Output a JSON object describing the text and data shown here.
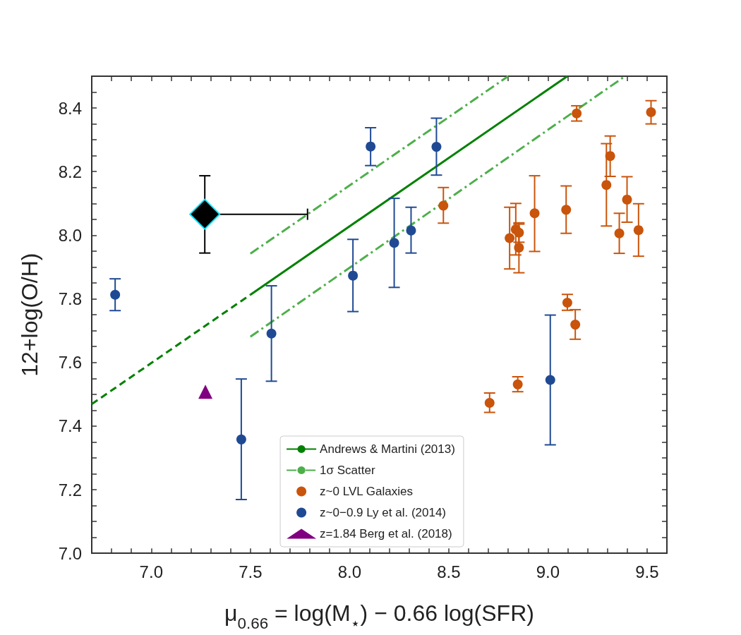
{
  "chart_data": {
    "type": "scatter",
    "xlabel": "μ$_{0.66}$ = log(M$_{⋆}$) − 0.66 log(SFR)",
    "ylabel": "12+log(O/H)",
    "xlim": [
      6.7,
      9.6
    ],
    "ylim": [
      7.0,
      8.5
    ],
    "xticks": [
      {
        "value": 6.8,
        "label": null
      },
      {
        "value": 6.9,
        "label": null
      },
      {
        "value": 7,
        "label": "7.0"
      },
      {
        "value": 7.1,
        "label": null
      },
      {
        "value": 7.2,
        "label": null
      },
      {
        "value": 7.3,
        "label": null
      },
      {
        "value": 7.4,
        "label": null
      },
      {
        "value": 7.5,
        "label": "7.5"
      },
      {
        "value": 7.6,
        "label": null
      },
      {
        "value": 7.7,
        "label": null
      },
      {
        "value": 7.8,
        "label": null
      },
      {
        "value": 7.9,
        "label": null
      },
      {
        "value": 8,
        "label": "8.0"
      },
      {
        "value": 8.1,
        "label": null
      },
      {
        "value": 8.2,
        "label": null
      },
      {
        "value": 8.3,
        "label": null
      },
      {
        "value": 8.4,
        "label": null
      },
      {
        "value": 8.5,
        "label": "8.5"
      },
      {
        "value": 8.6,
        "label": null
      },
      {
        "value": 8.7,
        "label": null
      },
      {
        "value": 8.8,
        "label": null
      },
      {
        "value": 8.9,
        "label": null
      },
      {
        "value": 9,
        "label": "9.0"
      },
      {
        "value": 9.1,
        "label": null
      },
      {
        "value": 9.2,
        "label": null
      },
      {
        "value": 9.3,
        "label": null
      },
      {
        "value": 9.4,
        "label": null
      },
      {
        "value": 9.5,
        "label": "9.5"
      }
    ],
    "yticks": [
      {
        "value": 7,
        "label": "7.0"
      },
      {
        "value": 7.05,
        "label": null
      },
      {
        "value": 7.1,
        "label": null
      },
      {
        "value": 7.15,
        "label": null
      },
      {
        "value": 7.2,
        "label": "7.2"
      },
      {
        "value": 7.25,
        "label": null
      },
      {
        "value": 7.3,
        "label": null
      },
      {
        "value": 7.35,
        "label": null
      },
      {
        "value": 7.4,
        "label": "7.4"
      },
      {
        "value": 7.45,
        "label": null
      },
      {
        "value": 7.5,
        "label": null
      },
      {
        "value": 7.55,
        "label": null
      },
      {
        "value": 7.6,
        "label": "7.6"
      },
      {
        "value": 7.65,
        "label": null
      },
      {
        "value": 7.7,
        "label": null
      },
      {
        "value": 7.75,
        "label": null
      },
      {
        "value": 7.8,
        "label": "7.8"
      },
      {
        "value": 7.85,
        "label": null
      },
      {
        "value": 7.9,
        "label": null
      },
      {
        "value": 7.95,
        "label": null
      },
      {
        "value": 8,
        "label": "8.0"
      },
      {
        "value": 8.05,
        "label": null
      },
      {
        "value": 8.1,
        "label": null
      },
      {
        "value": 8.15,
        "label": null
      },
      {
        "value": 8.2,
        "label": "8.2"
      },
      {
        "value": 8.25,
        "label": null
      },
      {
        "value": 8.3,
        "label": null
      },
      {
        "value": 8.35,
        "label": null
      },
      {
        "value": 8.4,
        "label": "8.4"
      },
      {
        "value": 8.45,
        "label": null
      }
    ],
    "grid": false,
    "legend": "bottom",
    "series": [
      {
        "name": "Andrews & Martini (2013)",
        "type": "line",
        "color": "#008000",
        "line_style": "solid",
        "marker": "none",
        "x": [
          7.5,
          9.098
        ],
        "values": [
          7.813,
          8.5
        ]
      },
      {
        "type": "line",
        "color": "#008000",
        "line_style": "dashed",
        "marker": "none",
        "x": [
          6.7,
          7.5
        ],
        "values": [
          7.469,
          7.813
        ]
      },
      {
        "name": "1σ Scatter",
        "type": "line",
        "color": "#4daf4a",
        "line_style": "dashdot",
        "marker": "none",
        "x": [
          7.5,
          8.8
        ],
        "values": [
          7.942,
          8.5
        ]
      },
      {
        "type": "line",
        "color": "#4daf4a",
        "line_style": "dashdot",
        "marker": "none",
        "x": [
          7.5,
          9.389
        ],
        "values": [
          7.681,
          8.5
        ]
      },
      {
        "name": "z~0 LVL Galaxies",
        "color": "#c9540b",
        "marker": "circle",
        "x": [
          9.145,
          9.52,
          9.314,
          9.295,
          9.399,
          9.36,
          9.457,
          9.092,
          8.933,
          8.473,
          8.807,
          8.838,
          8.854,
          8.854,
          9.098,
          9.138,
          8.848,
          8.706
        ],
        "values": [
          8.383,
          8.387,
          8.249,
          8.158,
          8.112,
          8.006,
          8.016,
          8.08,
          8.069,
          8.093,
          7.991,
          8.018,
          8.008,
          7.961,
          7.788,
          7.719,
          7.531,
          7.473
        ],
        "errors": [
          [
            8.359,
            8.407
          ],
          [
            8.35,
            8.423
          ],
          [
            8.185,
            8.312
          ],
          [
            8.029,
            8.288
          ],
          [
            8.041,
            8.184
          ],
          [
            7.943,
            8.069
          ],
          [
            7.934,
            8.099
          ],
          [
            8.006,
            8.155
          ],
          [
            7.949,
            8.187
          ],
          [
            8.038,
            8.15
          ],
          [
            7.894,
            8.088
          ],
          [
            7.938,
            8.1
          ],
          [
            7.978,
            8.039
          ],
          [
            7.882,
            8.035
          ],
          [
            7.764,
            7.814
          ],
          [
            7.673,
            7.766
          ],
          [
            7.508,
            7.555
          ],
          [
            7.443,
            7.504
          ]
        ]
      },
      {
        "name": "z~0−0.9 Ly et al. (2014)",
        "color": "#1f4a93",
        "marker": "circle",
        "x": [
          6.818,
          8.106,
          8.017,
          8.438,
          8.225,
          8.31,
          7.606,
          7.454,
          9.012
        ],
        "values": [
          7.813,
          8.279,
          7.873,
          8.278,
          7.976,
          8.015,
          7.691,
          7.358,
          7.545
        ],
        "errors": [
          [
            7.763,
            7.863
          ],
          [
            8.219,
            8.338
          ],
          [
            7.76,
            7.987
          ],
          [
            8.189,
            8.368
          ],
          [
            7.836,
            8.116
          ],
          [
            7.944,
            8.088
          ],
          [
            7.541,
            7.841
          ],
          [
            7.169,
            7.548
          ],
          [
            7.341,
            7.749
          ]
        ]
      },
      {
        "name": "z=1.84 Berg et al. (2018)",
        "color": "#800080",
        "marker": "triangle",
        "x": [
          7.273
        ],
        "values": [
          7.508
        ]
      },
      {
        "color": "#000000",
        "marker": "diamond",
        "x": [
          7.27
        ],
        "values": [
          8.066
        ],
        "errors": [
          [
            7.944,
            8.187
          ]
        ],
        "xerrors": [
          [
            7.27,
            7.788
          ]
        ]
      }
    ]
  }
}
